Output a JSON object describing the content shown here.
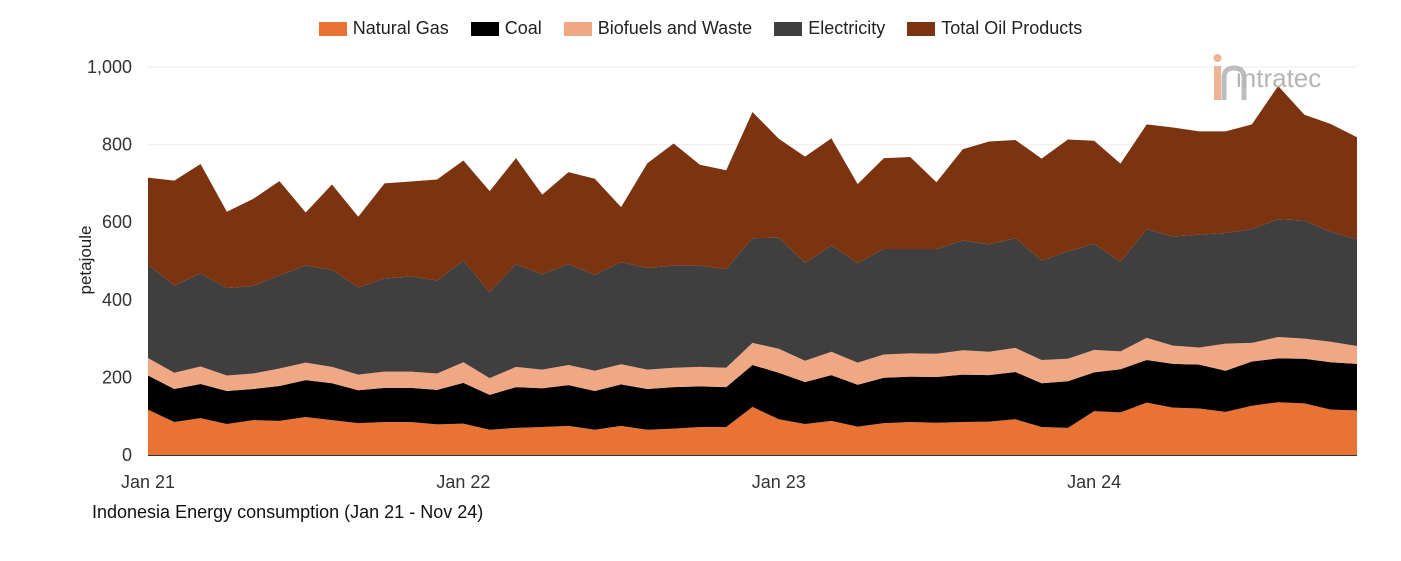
{
  "chart_data": {
    "type": "area",
    "stacked": true,
    "caption": "Indonesia Energy consumption (Jan 21 - Nov 24)",
    "ylabel": "petajoule",
    "ylim": [
      0,
      1000
    ],
    "yticks": [
      0,
      200,
      400,
      600,
      800,
      1000
    ],
    "ytick_labels": [
      "0",
      "200",
      "400",
      "600",
      "800",
      "1,000"
    ],
    "xtick_labels": [
      {
        "label": "Jan 21",
        "index": 0
      },
      {
        "label": "Jan 22",
        "index": 12
      },
      {
        "label": "Jan 23",
        "index": 24
      },
      {
        "label": "Jan 24",
        "index": 36
      }
    ],
    "grid": true,
    "legend_position": "top-center",
    "watermark": "intratec",
    "x": [
      "2021-01",
      "2021-02",
      "2021-03",
      "2021-04",
      "2021-05",
      "2021-06",
      "2021-07",
      "2021-08",
      "2021-09",
      "2021-10",
      "2021-11",
      "2021-12",
      "2022-01",
      "2022-02",
      "2022-03",
      "2022-04",
      "2022-05",
      "2022-06",
      "2022-07",
      "2022-08",
      "2022-09",
      "2022-10",
      "2022-11",
      "2022-12",
      "2023-01",
      "2023-02",
      "2023-03",
      "2023-04",
      "2023-05",
      "2023-06",
      "2023-07",
      "2023-08",
      "2023-09",
      "2023-10",
      "2023-11",
      "2023-12",
      "2024-01",
      "2024-02",
      "2024-03",
      "2024-04",
      "2024-05",
      "2024-06",
      "2024-07",
      "2024-08",
      "2024-09",
      "2024-10",
      "2024-11"
    ],
    "series": [
      {
        "name": "Natural Gas",
        "color": "#E87334",
        "values": [
          117,
          85,
          95,
          80,
          90,
          88,
          98,
          90,
          82,
          85,
          85,
          79,
          81,
          65,
          70,
          72,
          75,
          65,
          75,
          65,
          68,
          72,
          72,
          124,
          92,
          80,
          88,
          73,
          82,
          85,
          83,
          85,
          86,
          92,
          72,
          70,
          113,
          110,
          135,
          122,
          120,
          111,
          127,
          136,
          133,
          117,
          115
        ]
      },
      {
        "name": "Coal",
        "color": "#000000",
        "values": [
          88,
          85,
          88,
          85,
          80,
          90,
          95,
          95,
          85,
          88,
          88,
          89,
          105,
          90,
          105,
          100,
          105,
          100,
          107,
          105,
          107,
          105,
          103,
          108,
          120,
          108,
          118,
          108,
          117,
          117,
          118,
          122,
          120,
          122,
          113,
          120,
          100,
          111,
          110,
          113,
          113,
          106,
          114,
          113,
          115,
          122,
          120
        ]
      },
      {
        "name": "Biofuels and Waste",
        "color": "#F0A884",
        "values": [
          45,
          42,
          45,
          40,
          40,
          45,
          45,
          42,
          40,
          42,
          42,
          42,
          53,
          43,
          52,
          48,
          52,
          52,
          52,
          50,
          50,
          50,
          50,
          57,
          62,
          55,
          60,
          57,
          60,
          60,
          60,
          63,
          60,
          62,
          60,
          58,
          58,
          46,
          57,
          47,
          44,
          70,
          48,
          55,
          52,
          53,
          46
        ]
      },
      {
        "name": "Electricity",
        "color": "#3F3F3F",
        "values": [
          240,
          225,
          240,
          225,
          226,
          240,
          250,
          250,
          225,
          240,
          245,
          240,
          262,
          222,
          265,
          246,
          260,
          247,
          263,
          262,
          263,
          261,
          254,
          270,
          286,
          252,
          274,
          257,
          272,
          269,
          270,
          283,
          277,
          283,
          256,
          277,
          273,
          231,
          280,
          281,
          291,
          285,
          293,
          304,
          304,
          283,
          275
        ]
      },
      {
        "name": "Total Oil Products",
        "color": "#7C3310",
        "values": [
          225,
          270,
          282,
          197,
          224,
          243,
          137,
          220,
          182,
          245,
          245,
          260,
          258,
          260,
          273,
          205,
          237,
          248,
          142,
          270,
          315,
          260,
          255,
          325,
          255,
          274,
          276,
          203,
          234,
          237,
          172,
          235,
          265,
          253,
          263,
          288,
          266,
          253,
          270,
          281,
          266,
          262,
          270,
          343,
          273,
          278,
          263
        ]
      }
    ]
  }
}
